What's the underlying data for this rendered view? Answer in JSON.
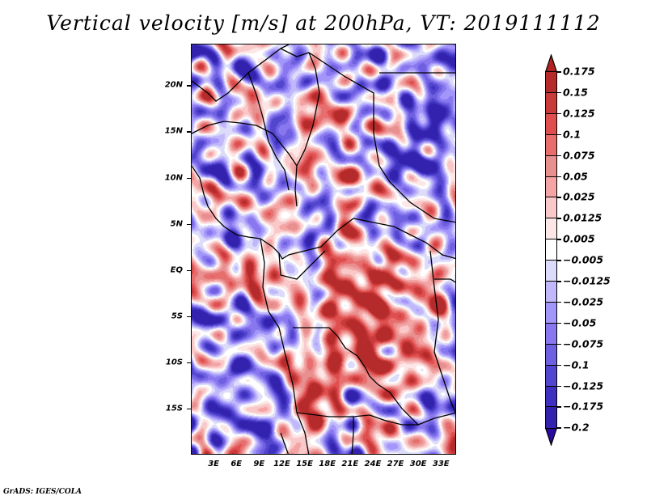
{
  "title": "Vertical velocity [m/s] at 200hPa, VT: 2019111112",
  "credit": "GrADS: IGES/COLA",
  "map": {
    "variable": "Vertical velocity",
    "units": "m/s",
    "level": "200hPa",
    "valid_time": "2019111112",
    "lat_range": [
      -20,
      24.5
    ],
    "lon_range": [
      0,
      35
    ],
    "y_axis_labels": [
      {
        "label": "20N",
        "lat": 20
      },
      {
        "label": "15N",
        "lat": 15
      },
      {
        "label": "10N",
        "lat": 10
      },
      {
        "label": "5N",
        "lat": 5
      },
      {
        "label": "EQ",
        "lat": 0
      },
      {
        "label": "5S",
        "lat": -5
      },
      {
        "label": "10S",
        "lat": -10
      },
      {
        "label": "15S",
        "lat": -15
      }
    ],
    "x_axis_labels": [
      {
        "label": "3E",
        "lon": 3
      },
      {
        "label": "6E",
        "lon": 6
      },
      {
        "label": "9E",
        "lon": 9
      },
      {
        "label": "12E",
        "lon": 12
      },
      {
        "label": "15E",
        "lon": 15
      },
      {
        "label": "18E",
        "lon": 18
      },
      {
        "label": "21E",
        "lon": 21
      },
      {
        "label": "24E",
        "lon": 24
      },
      {
        "label": "27E",
        "lon": 27
      },
      {
        "label": "30E",
        "lon": 30
      },
      {
        "label": "33E",
        "lon": 33
      }
    ]
  },
  "colorbar": {
    "top_arrow_color": "#b22222",
    "bottom_arrow_color": "#2a0aa0",
    "levels": [
      "0.175",
      "0.15",
      "0.125",
      "0.1",
      "0.075",
      "0.05",
      "0.025",
      "0.0125",
      "0.005",
      "-0.005",
      "-0.0125",
      "-0.025",
      "-0.05",
      "-0.075",
      "-0.1",
      "-0.125",
      "-0.175",
      "-0.2"
    ],
    "colors": [
      "#b52a2a",
      "#c93a3a",
      "#e04f4f",
      "#e86e6e",
      "#e88f8f",
      "#f4a4a4",
      "#f9c8c8",
      "#fde6e6",
      "#ffffff",
      "#dcdcfa",
      "#c0b8fa",
      "#a396fa",
      "#8877ee",
      "#6e60e0",
      "#5246cf",
      "#3f31bf",
      "#3322ad"
    ]
  }
}
